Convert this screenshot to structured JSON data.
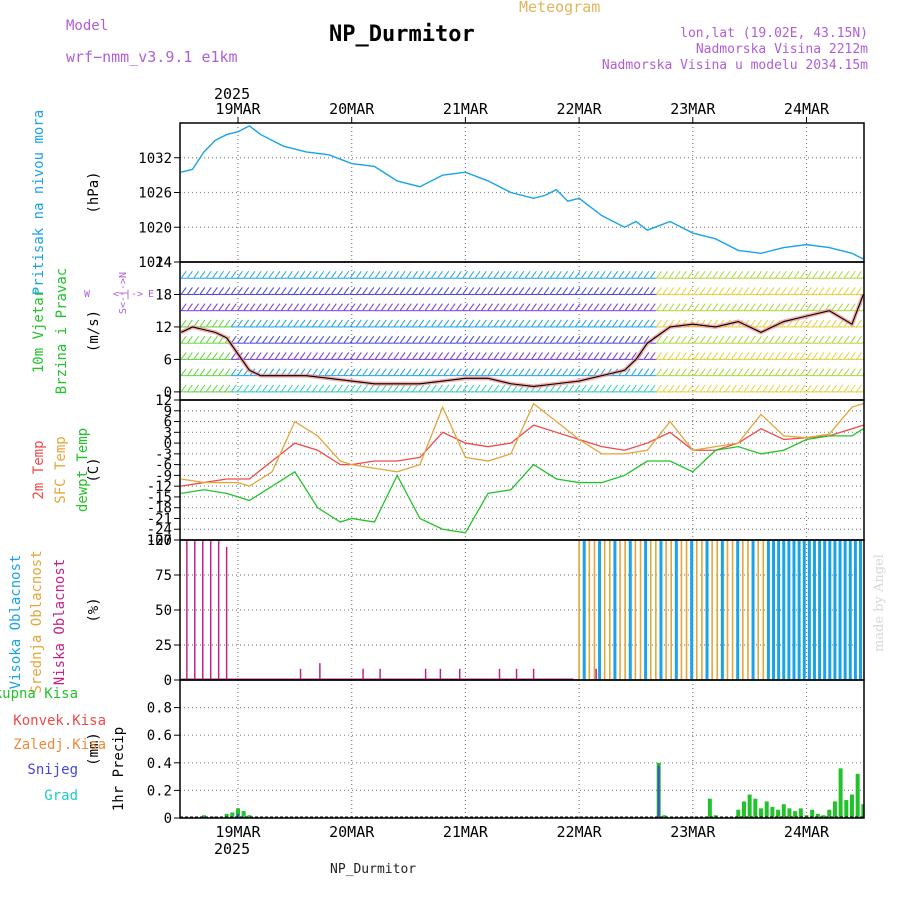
{
  "header": {
    "model_label": "Model",
    "model_name": "wrf−nmm_v3.9.1  e1km",
    "title": "NP_Durmitor",
    "subtitle": "Meteogram",
    "location": "lon,lat (19.02E, 43.15N)",
    "elevation": "Nadmorska Visina 2212m",
    "model_elevation": "Nadmorska Visina u modelu 2034.15m",
    "year": "2025",
    "footer_station": "NP_Durmitor",
    "credit": "made by Angel"
  },
  "colors": {
    "pressure": "#1ba3e8",
    "t2m": "#f04a4a",
    "sfc": "#e3a63a",
    "dewpt": "#22c32a",
    "high_cloud": "#1ba3e8",
    "mid_cloud": "#e3a63a",
    "low_cloud": "#c2228a",
    "total_precip": "#22c32a",
    "snow": "#4545e0",
    "graupel": "#22c9c9"
  },
  "chart_data": [
    {
      "type": "line",
      "id": "pressure",
      "ylabel": [
        "Pritisak na nivou mora"
      ],
      "unit": "(hPa)",
      "ylim": [
        1014,
        1038
      ],
      "yticks": [
        1014,
        1020,
        1026,
        1032
      ],
      "x_categories": [
        "19MAR",
        "20MAR",
        "21MAR",
        "22MAR",
        "23MAR",
        "24MAR"
      ],
      "series": [
        {
          "name": "Pritisak na nivou mora",
          "color": "#1ba3e8",
          "x": [
            -0.5,
            -0.4,
            -0.3,
            -0.2,
            -0.1,
            0,
            0.1,
            0.2,
            0.4,
            0.6,
            0.8,
            1,
            1.2,
            1.4,
            1.6,
            1.8,
            2,
            2.2,
            2.4,
            2.6,
            2.7,
            2.8,
            2.9,
            3,
            3.2,
            3.4,
            3.5,
            3.6,
            3.8,
            4,
            4.2,
            4.4,
            4.6,
            4.8,
            5,
            5.2,
            5.4,
            5.5
          ],
          "y": [
            1029.5,
            1030,
            1033,
            1035,
            1036,
            1036.5,
            1037.5,
            1036,
            1034,
            1033,
            1032.5,
            1031,
            1030.5,
            1028,
            1027,
            1029,
            1029.5,
            1028,
            1026,
            1025,
            1025.5,
            1026.5,
            1024.5,
            1025,
            1022,
            1020,
            1021,
            1019.5,
            1021,
            1019,
            1018,
            1016,
            1015.5,
            1016.5,
            1017,
            1016.5,
            1015.5,
            1014.5
          ]
        }
      ]
    },
    {
      "type": "line",
      "id": "wind",
      "ylabel": [
        "10m Vjetar",
        "Brzina i Pravac"
      ],
      "unit": "(m/s)",
      "ylim": [
        -1.5,
        24
      ],
      "yticks": [
        0,
        6,
        12,
        18,
        24
      ],
      "compass": {
        "n": "N",
        "s": "S",
        "e": "E",
        "w": "W"
      },
      "x_categories": [
        "19MAR",
        "20MAR",
        "21MAR",
        "22MAR",
        "23MAR",
        "24MAR"
      ],
      "series": [
        {
          "name": "10m Vjetar Brzina",
          "color": "#000000",
          "x": [
            -0.5,
            -0.4,
            -0.3,
            -0.2,
            -0.1,
            0,
            0.1,
            0.2,
            0.4,
            0.6,
            0.8,
            1,
            1.2,
            1.4,
            1.6,
            1.8,
            2,
            2.2,
            2.4,
            2.6,
            2.8,
            3,
            3.2,
            3.4,
            3.5,
            3.6,
            3.8,
            4,
            4.2,
            4.4,
            4.6,
            4.8,
            5,
            5.2,
            5.4,
            5.5
          ],
          "y": [
            11,
            12,
            11.5,
            11,
            10,
            7,
            4,
            3,
            3,
            3,
            2.5,
            2,
            1.5,
            1.5,
            1.5,
            2,
            2.5,
            2.5,
            1.5,
            1,
            1.5,
            2,
            3,
            4,
            6,
            9,
            12,
            12.5,
            12,
            13,
            11,
            13,
            14,
            15,
            12.5,
            18
          ]
        }
      ],
      "wind_rows": [
        {
          "level": 0,
          "color": "#2ad0b0",
          "x_start": -0.5,
          "x_end": 5.5
        },
        {
          "level": 3,
          "color": "#1ba3e8",
          "x_start": -0.5,
          "x_end": 5.5
        },
        {
          "level": 6,
          "color": "#7a3ae0",
          "x_start": -0.5,
          "x_end": 5.5
        },
        {
          "level": 9,
          "color": "#4545e0",
          "x_start": -0.5,
          "x_end": 5.5
        },
        {
          "level": 12,
          "color": "#1ba3e8",
          "x_start": -0.5,
          "x_end": 5.5
        },
        {
          "level": 15,
          "color": "#7a3ae0",
          "x_start": -0.5,
          "x_end": 5.5
        },
        {
          "level": 18,
          "color": "#4545e0",
          "x_start": -0.5,
          "x_end": 5.5
        },
        {
          "level": 21,
          "color": "#1ba3e8",
          "x_start": -0.5,
          "x_end": 5.5
        },
        {
          "level": 24,
          "color": "#7a3ae0",
          "x_start": -0.5,
          "x_end": 3.5
        }
      ]
    },
    {
      "type": "line",
      "id": "temperature",
      "ylabel": [
        "2m Temp",
        "SFC Temp",
        "dewpt Temp"
      ],
      "unit": "(C)",
      "ylim": [
        -27,
        12
      ],
      "yticks": [
        12,
        9,
        6,
        3,
        0,
        -3,
        -6,
        -9,
        -12,
        -15,
        -18,
        -21,
        -24,
        -27
      ],
      "x_categories": [
        "19MAR",
        "20MAR",
        "21MAR",
        "22MAR",
        "23MAR",
        "24MAR"
      ],
      "series": [
        {
          "name": "2m Temp",
          "color": "#f04a4a",
          "x": [
            -0.5,
            -0.3,
            -0.1,
            0,
            0.1,
            0.3,
            0.5,
            0.7,
            0.9,
            1,
            1.2,
            1.4,
            1.6,
            1.8,
            2,
            2.2,
            2.4,
            2.6,
            2.8,
            3,
            3.2,
            3.4,
            3.6,
            3.8,
            4,
            4.2,
            4.4,
            4.6,
            4.8,
            5,
            5.2,
            5.4,
            5.5
          ],
          "y": [
            -12,
            -11,
            -10,
            -10,
            -10,
            -5,
            0,
            -2,
            -6,
            -6,
            -5,
            -5,
            -4,
            3,
            0,
            -1,
            0,
            5,
            3,
            1,
            -1,
            -2,
            0,
            3,
            -2,
            -2,
            0,
            4,
            1,
            1.5,
            2,
            4,
            5
          ]
        },
        {
          "name": "SFC Temp",
          "color": "#e3a63a",
          "x": [
            -0.5,
            -0.3,
            -0.1,
            0,
            0.1,
            0.3,
            0.5,
            0.7,
            0.9,
            1,
            1.2,
            1.4,
            1.6,
            1.8,
            2,
            2.2,
            2.4,
            2.6,
            2.8,
            3,
            3.2,
            3.4,
            3.6,
            3.8,
            4,
            4.2,
            4.4,
            4.6,
            4.8,
            5,
            5.2,
            5.4,
            5.5
          ],
          "y": [
            -10,
            -11,
            -11,
            -11,
            -12,
            -8,
            6,
            2,
            -5,
            -6,
            -7,
            -8,
            -6,
            10,
            -4,
            -5,
            -3,
            11,
            6,
            1,
            -3,
            -3,
            -2,
            6,
            -2,
            -1,
            0,
            8,
            2,
            1.5,
            2.5,
            10,
            11
          ]
        },
        {
          "name": "dewpt Temp",
          "color": "#22c32a",
          "x": [
            -0.5,
            -0.3,
            -0.1,
            0,
            0.1,
            0.3,
            0.5,
            0.7,
            0.9,
            1,
            1.2,
            1.4,
            1.6,
            1.8,
            2,
            2.2,
            2.4,
            2.6,
            2.8,
            3,
            3.2,
            3.4,
            3.6,
            3.8,
            4,
            4.2,
            4.4,
            4.6,
            4.8,
            5,
            5.2,
            5.4,
            5.5
          ],
          "y": [
            -14,
            -13,
            -14,
            -15,
            -16,
            -12,
            -8,
            -18,
            -22,
            -21,
            -22,
            -9,
            -21,
            -24,
            -25,
            -14,
            -13,
            -6,
            -10,
            -11,
            -11,
            -9,
            -5,
            -5,
            -8,
            -2,
            -1,
            -3,
            -2,
            1,
            2,
            2,
            4
          ]
        }
      ]
    },
    {
      "type": "bar",
      "id": "clouds",
      "ylabel": [
        "Visoka Oblacnost",
        "Srednja Oblacnost",
        "Niska Oblacnost"
      ],
      "unit": "(%)",
      "ylim": [
        0,
        100
      ],
      "yticks": [
        0,
        25,
        50,
        75,
        100
      ],
      "x_categories": [
        "19MAR",
        "20MAR",
        "21MAR",
        "22MAR",
        "23MAR",
        "24MAR"
      ],
      "series": [
        {
          "name": "Niska Oblacnost",
          "color": "#c2228a",
          "x": [
            -0.45,
            -0.38,
            -0.31,
            -0.24,
            -0.17,
            -0.1,
            0.55,
            0.72,
            1.1,
            1.25,
            1.65,
            1.78,
            1.95,
            2.3,
            2.45,
            2.6,
            3.05,
            3.15
          ],
          "values": [
            100,
            100,
            100,
            100,
            100,
            95,
            8,
            12,
            8,
            8,
            8,
            8,
            8,
            8,
            8,
            8,
            8,
            8
          ]
        },
        {
          "name": "Srednja Oblacnost",
          "color": "#e3a63a",
          "x_start": 3.0,
          "x_end": 5.5,
          "step": 0.045,
          "values": 100
        },
        {
          "name": "Visoka Oblacnost",
          "color": "#1ba3e8",
          "x_start": 3.02,
          "x_end": 5.5,
          "step": 0.045,
          "values": 100
        }
      ]
    },
    {
      "type": "bar",
      "id": "precipitation",
      "ylabel": [
        "1hr Precip"
      ],
      "unit": "(mm)",
      "ylim": [
        0,
        1.0
      ],
      "yticks": [
        0,
        0.2,
        0.4,
        0.6,
        0.8
      ],
      "legend": [
        "Ukupna Kisa",
        "Konvek.Kisa",
        "Zaledj.Kisa",
        "Snijeg",
        "Grad"
      ],
      "x_categories": [
        "19MAR",
        "20MAR",
        "21MAR",
        "22MAR",
        "23MAR",
        "24MAR"
      ],
      "series": [
        {
          "name": "Ukupna Kisa",
          "color": "#22c32a",
          "x": [
            -0.3,
            -0.2,
            -0.1,
            -0.05,
            0,
            0.05,
            0.1,
            3.7,
            3.75,
            4.15,
            4.2,
            4.4,
            4.45,
            4.5,
            4.55,
            4.6,
            4.65,
            4.7,
            4.75,
            4.8,
            4.85,
            4.9,
            4.95,
            5.0,
            5.05,
            5.1,
            5.15,
            5.2,
            5.25,
            5.3,
            5.35,
            5.4,
            5.45,
            5.5
          ],
          "values": [
            0.02,
            0.01,
            0.03,
            0.04,
            0.07,
            0.05,
            0.02,
            0.4,
            0.02,
            0.14,
            0.02,
            0.06,
            0.12,
            0.17,
            0.14,
            0.07,
            0.12,
            0.08,
            0.06,
            0.1,
            0.07,
            0.05,
            0.07,
            0.02,
            0.06,
            0.03,
            0.02,
            0.06,
            0.12,
            0.36,
            0.13,
            0.17,
            0.32,
            0.1
          ]
        },
        {
          "name": "Snijeg",
          "color": "#4545e0",
          "x": [
            -0.3,
            0.0,
            3.7
          ],
          "values": [
            0.01,
            0.03,
            0.38
          ]
        },
        {
          "name": "Grad",
          "color": "#22c9c9",
          "x": [
            -0.05,
            0.05
          ],
          "values": [
            0.02,
            0.02
          ]
        }
      ]
    }
  ]
}
